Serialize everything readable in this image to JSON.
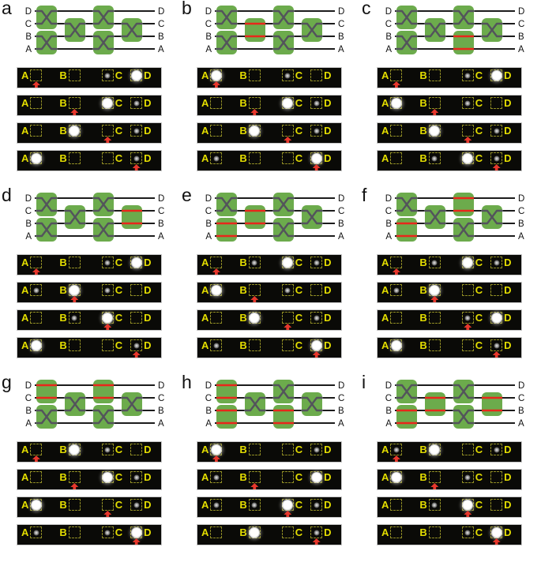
{
  "figure": {
    "description_labels": {
      "wire_labels_top_to_bottom": [
        "D",
        "C",
        "B",
        "A"
      ],
      "strip_port_order_left_to_right": [
        "A",
        "B",
        "C",
        "D"
      ]
    },
    "switch_positions": [
      "col1-DC",
      "col1-BA",
      "col2-CB",
      "col3-DC",
      "col3-BA",
      "col4-CB"
    ],
    "colors": {
      "switch_green": "#6cab4c",
      "cross_glyph_gray": "#53535c",
      "bar_state_red": "#e8271b",
      "wire_black": "#1c1c1c",
      "port_letter_yellow": "#e4de00",
      "dashed_box_yellow": "#8f8c24",
      "strip_background": "#0a0a07",
      "arrow_red": "#e7382d",
      "spot_white": "#ffffff"
    },
    "panels": [
      {
        "label": "a",
        "switch_states": [
          "cross",
          "cross",
          "cross",
          "cross",
          "cross",
          "cross"
        ],
        "strips": [
          {
            "input": "A",
            "spots": {
              "A": "none",
              "B": "none",
              "C": "dim",
              "D": "bright"
            }
          },
          {
            "input": "B",
            "spots": {
              "A": "none",
              "B": "none",
              "C": "bright",
              "D": "dim"
            }
          },
          {
            "input": "C",
            "spots": {
              "A": "none",
              "B": "bright",
              "C": "none",
              "D": "dim"
            }
          },
          {
            "input": "D",
            "spots": {
              "A": "bright",
              "B": "none",
              "C": "none",
              "D": "dim"
            }
          }
        ]
      },
      {
        "label": "b",
        "switch_states": [
          "cross",
          "cross",
          "bar",
          "cross",
          "cross",
          "cross"
        ],
        "strips": [
          {
            "input": "A",
            "spots": {
              "A": "bright",
              "B": "none",
              "C": "dim",
              "D": "none"
            }
          },
          {
            "input": "B",
            "spots": {
              "A": "none",
              "B": "none",
              "C": "bright",
              "D": "dim"
            }
          },
          {
            "input": "C",
            "spots": {
              "A": "none",
              "B": "bright",
              "C": "none",
              "D": "dim"
            }
          },
          {
            "input": "D",
            "spots": {
              "A": "dim",
              "B": "none",
              "C": "none",
              "D": "bright"
            }
          }
        ]
      },
      {
        "label": "c",
        "switch_states": [
          "cross",
          "cross",
          "cross",
          "cross",
          "bar",
          "cross"
        ],
        "strips": [
          {
            "input": "A",
            "spots": {
              "A": "none",
              "B": "none",
              "C": "dim",
              "D": "bright"
            }
          },
          {
            "input": "B",
            "spots": {
              "A": "bright",
              "B": "none",
              "C": "dim",
              "D": "none"
            }
          },
          {
            "input": "C",
            "spots": {
              "A": "none",
              "B": "bright",
              "C": "none",
              "D": "dim"
            }
          },
          {
            "input": "D",
            "spots": {
              "A": "none",
              "B": "dim",
              "C": "bright",
              "D": "dim"
            }
          }
        ]
      },
      {
        "label": "d",
        "switch_states": [
          "cross",
          "cross",
          "cross",
          "cross",
          "cross",
          "bar"
        ],
        "strips": [
          {
            "input": "A",
            "spots": {
              "A": "none",
              "B": "none",
              "C": "dim",
              "D": "bright"
            }
          },
          {
            "input": "B",
            "spots": {
              "A": "dim",
              "B": "bright",
              "C": "dim",
              "D": "none"
            }
          },
          {
            "input": "C",
            "spots": {
              "A": "none",
              "B": "dim",
              "C": "bright",
              "D": "none"
            }
          },
          {
            "input": "D",
            "spots": {
              "A": "bright",
              "B": "none",
              "C": "none",
              "D": "dim"
            }
          }
        ]
      },
      {
        "label": "e",
        "switch_states": [
          "cross",
          "bar",
          "bar",
          "cross",
          "cross",
          "cross"
        ],
        "strips": [
          {
            "input": "A",
            "spots": {
              "A": "none",
              "B": "dim",
              "C": "bright",
              "D": "dim"
            }
          },
          {
            "input": "B",
            "spots": {
              "A": "bright",
              "B": "none",
              "C": "dim",
              "D": "none"
            }
          },
          {
            "input": "C",
            "spots": {
              "A": "none",
              "B": "bright",
              "C": "none",
              "D": "dim"
            }
          },
          {
            "input": "D",
            "spots": {
              "A": "dim",
              "B": "none",
              "C": "none",
              "D": "bright"
            }
          }
        ]
      },
      {
        "label": "f",
        "switch_states": [
          "cross",
          "bar",
          "cross",
          "bar",
          "cross",
          "cross"
        ],
        "strips": [
          {
            "input": "A",
            "spots": {
              "A": "none",
              "B": "dim",
              "C": "bright",
              "D": "dim"
            }
          },
          {
            "input": "B",
            "spots": {
              "A": "dim",
              "B": "bright",
              "C": "none",
              "D": "none"
            }
          },
          {
            "input": "C",
            "spots": {
              "A": "none",
              "B": "none",
              "C": "dim",
              "D": "bright"
            }
          },
          {
            "input": "D",
            "spots": {
              "A": "bright",
              "B": "none",
              "C": "none",
              "D": "dim"
            }
          }
        ]
      },
      {
        "label": "g",
        "switch_states": [
          "bar",
          "cross",
          "cross",
          "bar",
          "cross",
          "cross"
        ],
        "strips": [
          {
            "input": "A",
            "spots": {
              "A": "none",
              "B": "bright",
              "C": "dim",
              "D": "none"
            }
          },
          {
            "input": "B",
            "spots": {
              "A": "none",
              "B": "none",
              "C": "bright",
              "D": "dim"
            }
          },
          {
            "input": "C",
            "spots": {
              "A": "bright",
              "B": "none",
              "C": "none",
              "D": "dim"
            }
          },
          {
            "input": "D",
            "spots": {
              "A": "dim",
              "B": "none",
              "C": "dim",
              "D": "bright"
            }
          }
        ]
      },
      {
        "label": "h",
        "switch_states": [
          "bar",
          "bar",
          "cross",
          "cross",
          "bar",
          "cross"
        ],
        "strips": [
          {
            "input": "A",
            "spots": {
              "A": "bright",
              "B": "none",
              "C": "none",
              "D": "dim"
            }
          },
          {
            "input": "B",
            "spots": {
              "A": "dim",
              "B": "none",
              "C": "none",
              "D": "bright"
            }
          },
          {
            "input": "C",
            "spots": {
              "A": "dim",
              "B": "dim",
              "C": "bright",
              "D": "dim"
            }
          },
          {
            "input": "D",
            "spots": {
              "A": "none",
              "B": "bright",
              "C": "none",
              "D": "dim"
            }
          }
        ]
      },
      {
        "label": "i",
        "switch_states": [
          "cross",
          "bar",
          "bar",
          "cross",
          "cross",
          "bar"
        ],
        "strips": [
          {
            "input": "A",
            "spots": {
              "A": "dim",
              "B": "bright",
              "C": "none",
              "D": "dim"
            }
          },
          {
            "input": "B",
            "spots": {
              "A": "bright",
              "B": "none",
              "C": "dim",
              "D": "none"
            }
          },
          {
            "input": "C",
            "spots": {
              "A": "none",
              "B": "dim",
              "C": "bright",
              "D": "none"
            }
          },
          {
            "input": "D",
            "spots": {
              "A": "none",
              "B": "none",
              "C": "dim",
              "D": "bright"
            }
          }
        ]
      }
    ]
  }
}
